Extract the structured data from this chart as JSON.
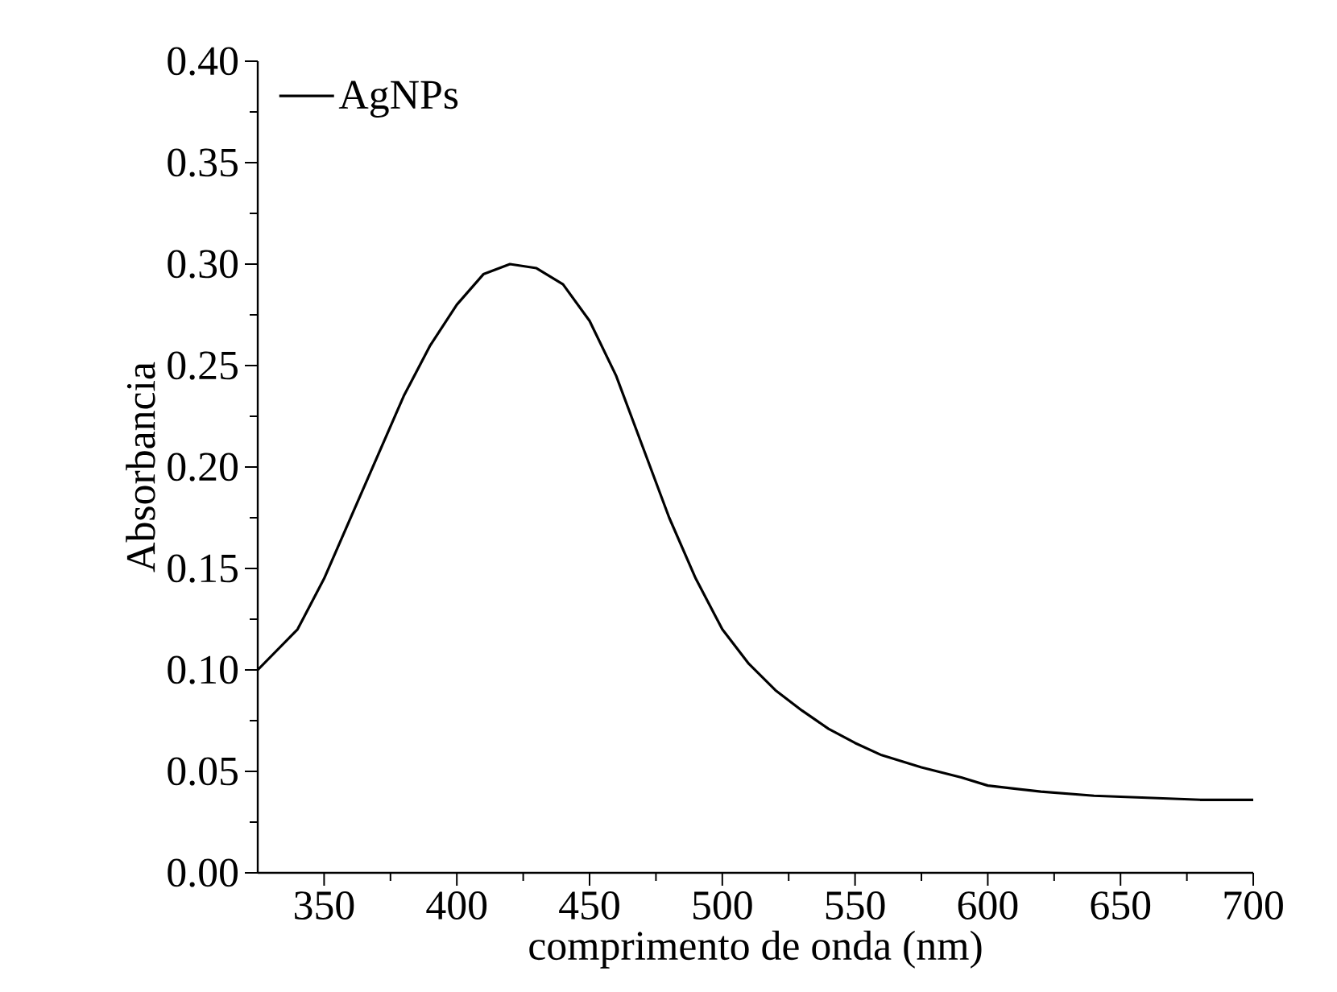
{
  "chart_data": {
    "type": "line",
    "xlabel": "comprimento de onda (nm)",
    "ylabel": "Absorbancia",
    "xlim": [
      325,
      700
    ],
    "xticks": [
      350,
      400,
      450,
      500,
      550,
      600,
      650,
      700
    ],
    "ylim": [
      0,
      0.4
    ],
    "yticks": [
      {
        "value": 0,
        "label": "0.00"
      },
      {
        "value": 0.05,
        "label": "0.05"
      },
      {
        "value": 0.1,
        "label": "0.10"
      },
      {
        "value": 0.15,
        "label": "0.15"
      },
      {
        "value": 0.2,
        "label": "0.20"
      },
      {
        "value": 0.25,
        "label": "0.25"
      },
      {
        "value": 0.3,
        "label": "0.30"
      },
      {
        "value": 0.35,
        "label": "0.35"
      },
      {
        "value": 0.4,
        "label": "0.40"
      }
    ],
    "legend": "top left",
    "grid": false,
    "marker": "none",
    "line_style": "solid",
    "x": [
      325,
      340,
      350,
      360,
      370,
      380,
      390,
      400,
      410,
      420,
      430,
      440,
      450,
      460,
      470,
      480,
      490,
      500,
      510,
      520,
      530,
      540,
      550,
      560,
      575,
      590,
      600,
      620,
      640,
      660,
      680,
      700
    ],
    "series": [
      {
        "name": "AgNPs",
        "color": "#000000",
        "values": [
          0.1,
          0.12,
          0.145,
          0.175,
          0.205,
          0.235,
          0.26,
          0.28,
          0.295,
          0.3,
          0.298,
          0.29,
          0.272,
          0.245,
          0.21,
          0.175,
          0.145,
          0.12,
          0.103,
          0.09,
          0.08,
          0.071,
          0.064,
          0.058,
          0.052,
          0.047,
          0.043,
          0.04,
          0.038,
          0.037,
          0.036,
          0.036
        ]
      }
    ]
  }
}
